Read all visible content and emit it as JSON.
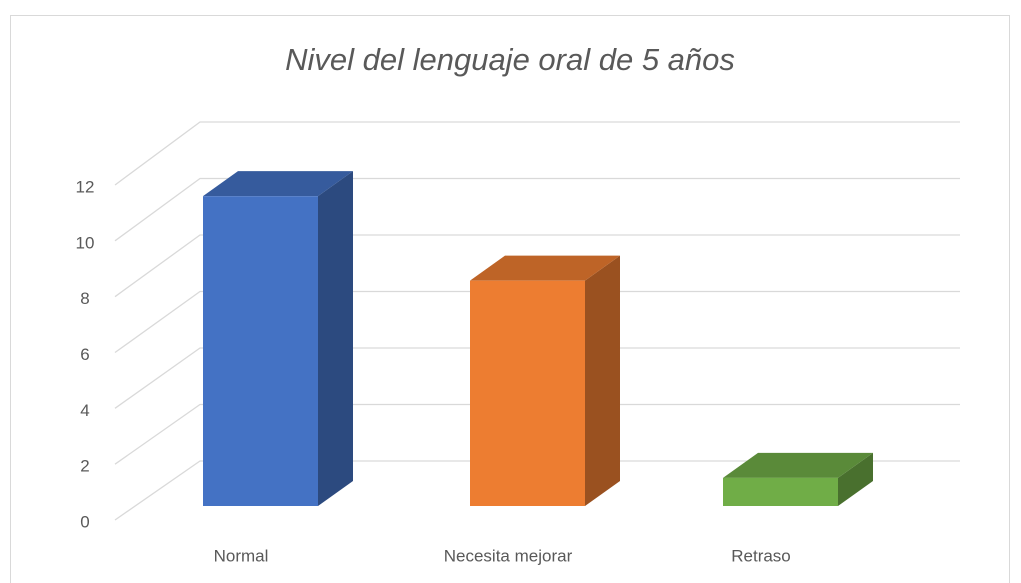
{
  "chart_data": {
    "type": "bar3d",
    "title": "Nivel del lenguaje oral  de 5 años",
    "categories": [
      "Normal",
      "Necesita mejorar",
      "Retraso"
    ],
    "values": [
      11,
      8,
      1
    ],
    "colors": [
      "#4472c4",
      "#ed7d31",
      "#70ad47"
    ],
    "ylim": [
      0,
      12
    ],
    "yticks": [
      0,
      2,
      4,
      6,
      8,
      10,
      12
    ],
    "grid": true
  }
}
